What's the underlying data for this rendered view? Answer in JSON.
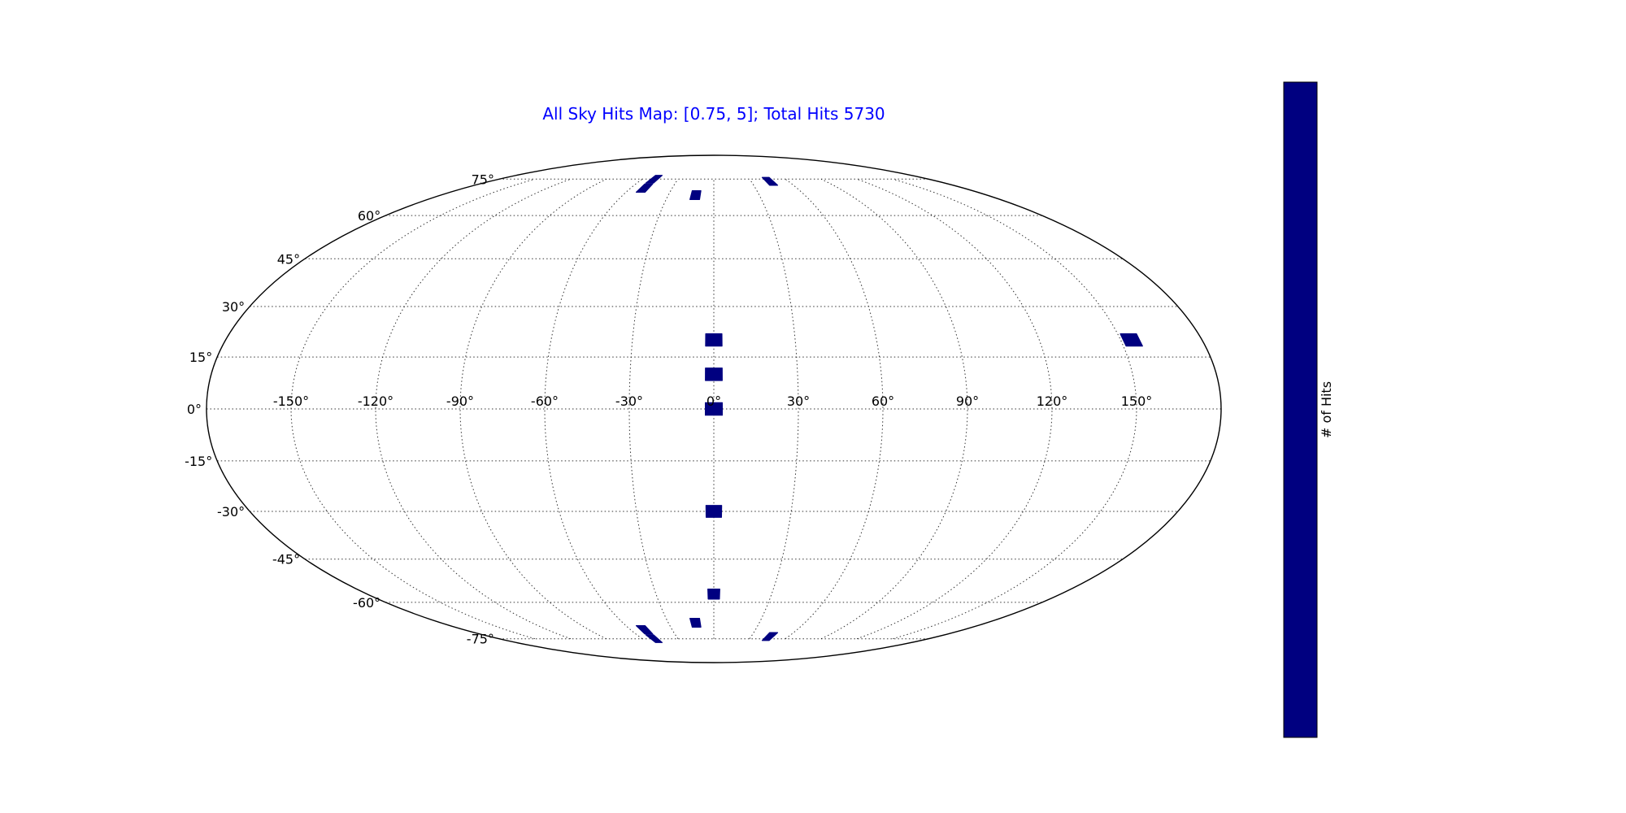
{
  "chart_data": {
    "type": "heatmap",
    "projection": "mollweide",
    "title": "All Sky Hits Map: [0.75, 5]; Total Hits 5730",
    "colorbar_label": "# of Hits",
    "x_ticks": [
      "-150°",
      "-120°",
      "-90°",
      "-60°",
      "-30°",
      "0°",
      "30°",
      "60°",
      "90°",
      "120°",
      "150°"
    ],
    "y_ticks": [
      "75°",
      "60°",
      "45°",
      "30°",
      "15°",
      "0°",
      "-15°",
      "-30°",
      "-45°",
      "-60°",
      "-75°"
    ],
    "grid": true,
    "legend": "colorbar-right",
    "patches": [
      {
        "lon": 0,
        "lat": 0
      },
      {
        "lon": 0,
        "lat": 10
      },
      {
        "lon": 0,
        "lat": 20
      },
      {
        "lon": 0,
        "lat": -30
      },
      {
        "lon": 0,
        "lat": -57
      },
      {
        "lon": -12,
        "lat": 68
      },
      {
        "lon": -12,
        "lat": -68
      },
      {
        "lon": -50,
        "lat": 71
      },
      {
        "lon": -50,
        "lat": -71
      },
      {
        "lon": -50,
        "lat": 75
      },
      {
        "lon": -50,
        "lat": -75
      },
      {
        "lon": 45,
        "lat": 74
      },
      {
        "lon": 45,
        "lat": -74
      },
      {
        "lon": 154,
        "lat": 20
      }
    ]
  },
  "colors": {
    "title": "#0000ff",
    "patch": "#000080",
    "colorbar": "#000080",
    "outline": "#000000"
  }
}
